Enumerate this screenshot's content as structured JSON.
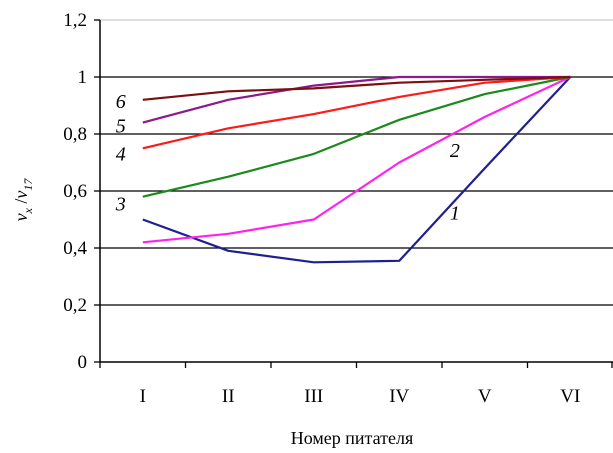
{
  "chart_data": {
    "type": "line",
    "categories": [
      "I",
      "II",
      "III",
      "IV",
      "V",
      "VI"
    ],
    "xlabel": "Номер питателя",
    "ylabel": "v_x / v_17",
    "ylabel_parts": {
      "a": "v",
      "a_sub": "x",
      "sep": "/",
      "b": "v",
      "b_sub": "17"
    },
    "ylim": [
      0,
      1.2
    ],
    "yticks": [
      "0",
      "0,2",
      "0,4",
      "0,6",
      "0,8",
      "1",
      "1,2"
    ],
    "grid": true,
    "series": [
      {
        "name": "1",
        "color": "#1f1f8f",
        "values": [
          0.5,
          0.39,
          0.35,
          0.355,
          0.68,
          1.0
        ]
      },
      {
        "name": "2",
        "color": "#ff22ee",
        "values": [
          0.42,
          0.45,
          0.5,
          0.7,
          0.86,
          1.0
        ]
      },
      {
        "name": "3",
        "color": "#1b8a1b",
        "values": [
          0.58,
          0.65,
          0.73,
          0.85,
          0.94,
          1.0
        ]
      },
      {
        "name": "4",
        "color": "#ff1a1a",
        "values": [
          0.75,
          0.82,
          0.87,
          0.93,
          0.98,
          1.0
        ]
      },
      {
        "name": "5",
        "color": "#8b1a8b",
        "values": [
          0.84,
          0.92,
          0.97,
          1.0,
          1.0,
          1.0
        ]
      },
      {
        "name": "6",
        "color": "#7a1010",
        "values": [
          0.92,
          0.95,
          0.96,
          0.98,
          0.99,
          1.0
        ]
      }
    ]
  }
}
